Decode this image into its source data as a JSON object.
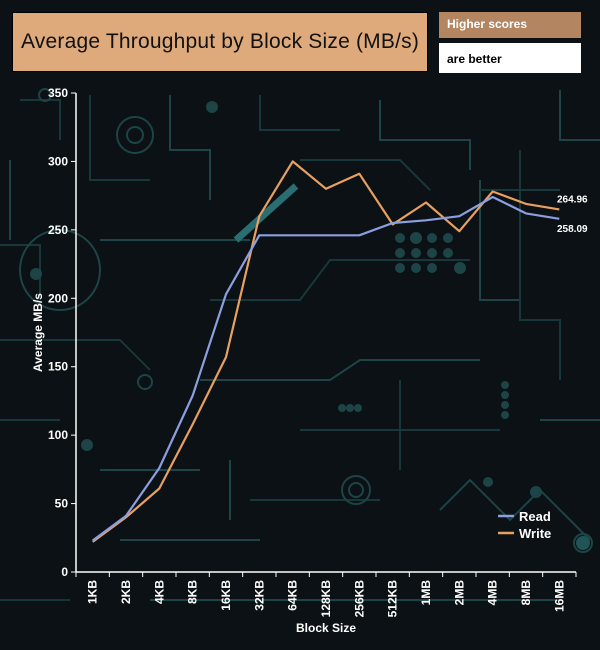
{
  "chart_data": {
    "type": "line",
    "title": "Average Throughput by Block Size (MB/s)",
    "notes": [
      "Higher scores",
      "are better"
    ],
    "xlabel": "Block Size",
    "ylabel": "Average MB/s",
    "ylim": [
      0,
      350
    ],
    "yticks": [
      0,
      50,
      100,
      150,
      200,
      250,
      300,
      350
    ],
    "categories": [
      "1KB",
      "2KB",
      "4KB",
      "8KB",
      "16KB",
      "32KB",
      "64KB",
      "128KB",
      "256KB",
      "512KB",
      "1MB",
      "2MB",
      "4MB",
      "8MB",
      "16MB"
    ],
    "series": [
      {
        "name": "Read",
        "color": "#8b9fe0",
        "values": [
          23,
          41,
          76,
          129,
          203,
          246,
          246,
          246,
          246,
          255,
          257,
          260,
          274,
          262,
          258.09
        ]
      },
      {
        "name": "Write",
        "color": "#e8a061",
        "values": [
          22,
          40,
          61,
          108,
          157,
          260,
          300,
          280,
          291,
          254,
          270,
          249,
          278,
          269,
          264.96
        ]
      }
    ],
    "end_labels": [
      "264.96",
      "258.09"
    ],
    "legend_position": "bottom-right",
    "grid": false
  }
}
